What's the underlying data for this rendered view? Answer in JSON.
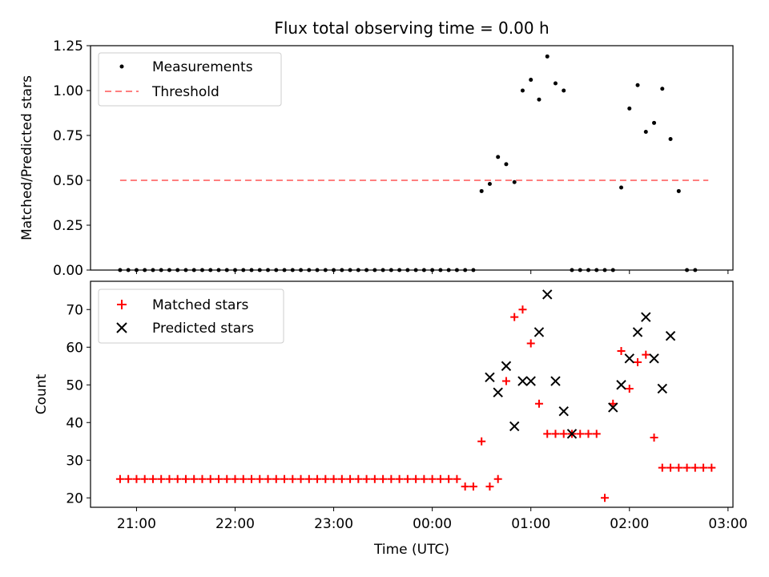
{
  "chart_data": [
    {
      "type": "scatter",
      "title": "Flux total observing time = 0.00 h",
      "xlabel": "",
      "ylabel": "Matched/Predicted stars",
      "xlim": [
        "20:32",
        "03:03"
      ],
      "ylim": [
        0,
        1.25
      ],
      "yticks": [
        0,
        0.25,
        0.5,
        0.75,
        1.0,
        1.25
      ],
      "ytick_labels": [
        "0.00",
        "0.25",
        "0.50",
        "0.75",
        "1.00",
        "1.25"
      ],
      "xticks": [
        "21:00",
        "22:00",
        "23:00",
        "00:00",
        "01:00",
        "02:00",
        "03:00"
      ],
      "grid": false,
      "legend": "top-left",
      "series": [
        {
          "name": "Measurements",
          "marker": "dot",
          "color": "#000000",
          "x": [
            "20:50",
            "20:55",
            "21:00",
            "21:05",
            "21:10",
            "21:15",
            "21:20",
            "21:25",
            "21:30",
            "21:35",
            "21:40",
            "21:45",
            "21:50",
            "21:55",
            "22:00",
            "22:05",
            "22:10",
            "22:15",
            "22:20",
            "22:25",
            "22:30",
            "22:35",
            "22:40",
            "22:45",
            "22:50",
            "22:55",
            "23:00",
            "23:05",
            "23:10",
            "23:15",
            "23:20",
            "23:25",
            "23:30",
            "23:35",
            "23:40",
            "23:45",
            "23:50",
            "23:55",
            "00:00",
            "00:05",
            "00:10",
            "00:15",
            "00:20",
            "00:25",
            "00:30",
            "00:35",
            "00:40",
            "00:45",
            "00:50",
            "00:55",
            "01:00",
            "01:05",
            "01:10",
            "01:15",
            "01:20",
            "01:25",
            "01:30",
            "01:35",
            "01:40",
            "01:45",
            "01:50",
            "01:55",
            "02:00",
            "02:05",
            "02:10",
            "02:15",
            "02:20",
            "02:25",
            "02:30",
            "02:35",
            "02:40"
          ],
          "y": [
            0,
            0,
            0,
            0,
            0,
            0,
            0,
            0,
            0,
            0,
            0,
            0,
            0,
            0,
            0,
            0,
            0,
            0,
            0,
            0,
            0,
            0,
            0,
            0,
            0,
            0,
            0,
            0,
            0,
            0,
            0,
            0,
            0,
            0,
            0,
            0,
            0,
            0,
            0,
            0,
            0,
            0,
            0,
            0,
            0.44,
            0.48,
            0.63,
            0.59,
            0.49,
            1.0,
            1.06,
            0.95,
            1.19,
            1.04,
            1.0,
            0,
            0,
            0,
            0,
            0,
            0,
            0.46,
            0.9,
            1.03,
            0.77,
            0.82,
            1.01,
            0.73,
            0.44,
            0,
            0
          ]
        },
        {
          "name": "Threshold",
          "type": "line",
          "dash": "dashed",
          "color": "#ff7f7f",
          "x": [
            "20:50",
            "02:48"
          ],
          "y": [
            0.5,
            0.5
          ]
        }
      ]
    },
    {
      "type": "scatter",
      "title": "",
      "xlabel": "Time (UTC)",
      "ylabel": "Count",
      "xlim": [
        "20:32",
        "03:03"
      ],
      "ylim": [
        17.5,
        77.5
      ],
      "yticks": [
        20,
        30,
        40,
        50,
        60,
        70
      ],
      "ytick_labels": [
        "20",
        "30",
        "40",
        "50",
        "60",
        "70"
      ],
      "xticks": [
        "21:00",
        "22:00",
        "23:00",
        "00:00",
        "01:00",
        "02:00",
        "03:00"
      ],
      "xtick_labels": [
        "21:00",
        "22:00",
        "23:00",
        "00:00",
        "01:00",
        "02:00",
        "03:00"
      ],
      "grid": false,
      "legend": "top-left",
      "series": [
        {
          "name": "Matched stars",
          "marker": "plus",
          "color": "#ff0000",
          "x": [
            "20:50",
            "20:55",
            "21:00",
            "21:05",
            "21:10",
            "21:15",
            "21:20",
            "21:25",
            "21:30",
            "21:35",
            "21:40",
            "21:45",
            "21:50",
            "21:55",
            "22:00",
            "22:05",
            "22:10",
            "22:15",
            "22:20",
            "22:25",
            "22:30",
            "22:35",
            "22:40",
            "22:45",
            "22:50",
            "22:55",
            "23:00",
            "23:05",
            "23:10",
            "23:15",
            "23:20",
            "23:25",
            "23:30",
            "23:35",
            "23:40",
            "23:45",
            "23:50",
            "23:55",
            "00:00",
            "00:05",
            "00:10",
            "00:15",
            "00:20",
            "00:25",
            "00:30",
            "00:35",
            "00:40",
            "00:45",
            "00:50",
            "00:55",
            "01:00",
            "01:05",
            "01:10",
            "01:15",
            "01:20",
            "01:25",
            "01:30",
            "01:35",
            "01:40",
            "01:45",
            "01:50",
            "01:55",
            "02:00",
            "02:05",
            "02:10",
            "02:15",
            "02:20",
            "02:25",
            "02:30",
            "02:35",
            "02:40",
            "02:45",
            "02:50"
          ],
          "y": [
            25,
            25,
            25,
            25,
            25,
            25,
            25,
            25,
            25,
            25,
            25,
            25,
            25,
            25,
            25,
            25,
            25,
            25,
            25,
            25,
            25,
            25,
            25,
            25,
            25,
            25,
            25,
            25,
            25,
            25,
            25,
            25,
            25,
            25,
            25,
            25,
            25,
            25,
            25,
            25,
            25,
            25,
            23,
            23,
            35,
            23,
            25,
            51,
            68,
            70,
            61,
            45,
            37,
            37,
            37,
            37,
            37,
            37,
            37,
            20,
            45,
            59,
            49,
            56,
            58,
            36,
            28,
            28,
            28,
            28,
            28,
            28,
            28
          ]
        },
        {
          "name": "Predicted stars",
          "marker": "x",
          "color": "#000000",
          "x": [
            "00:35",
            "00:40",
            "00:45",
            "00:50",
            "00:55",
            "01:00",
            "01:05",
            "01:10",
            "01:15",
            "01:20",
            "01:25",
            "01:50",
            "01:55",
            "02:00",
            "02:05",
            "02:10",
            "02:15",
            "02:20",
            "02:25"
          ],
          "y": [
            52,
            48,
            55,
            39,
            51,
            51,
            64,
            74,
            51,
            43,
            37,
            44,
            50,
            57,
            64,
            68,
            57,
            49,
            63
          ]
        }
      ]
    }
  ]
}
